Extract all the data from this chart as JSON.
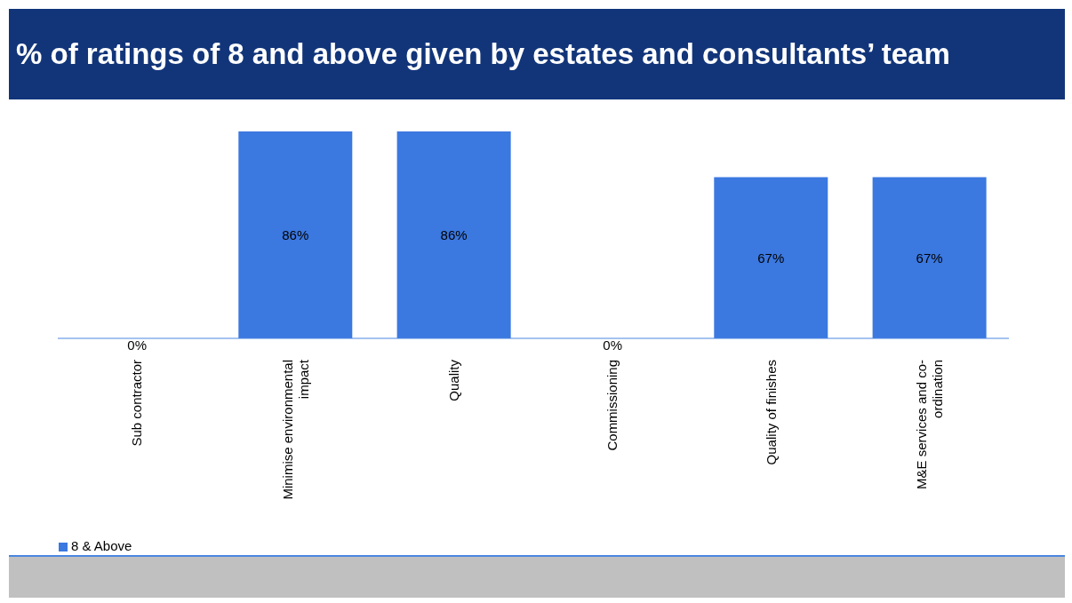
{
  "chart_data": {
    "type": "bar",
    "title": "% of ratings of 8 and above given by estates and consultants’ team",
    "categories": [
      "Sub contractor",
      "Minimise environmental impact",
      "Quality",
      "Commissioning",
      "Quality of finishes",
      "M&E services and co-ordination"
    ],
    "series": [
      {
        "name": "8 & Above",
        "color": "#3b78e0",
        "values": [
          0,
          86,
          86,
          0,
          67,
          67
        ],
        "value_labels": [
          "0%",
          "86%",
          "86%",
          "0%",
          "67%",
          "67%"
        ]
      }
    ],
    "legend": "bottom left",
    "grid": false
  }
}
